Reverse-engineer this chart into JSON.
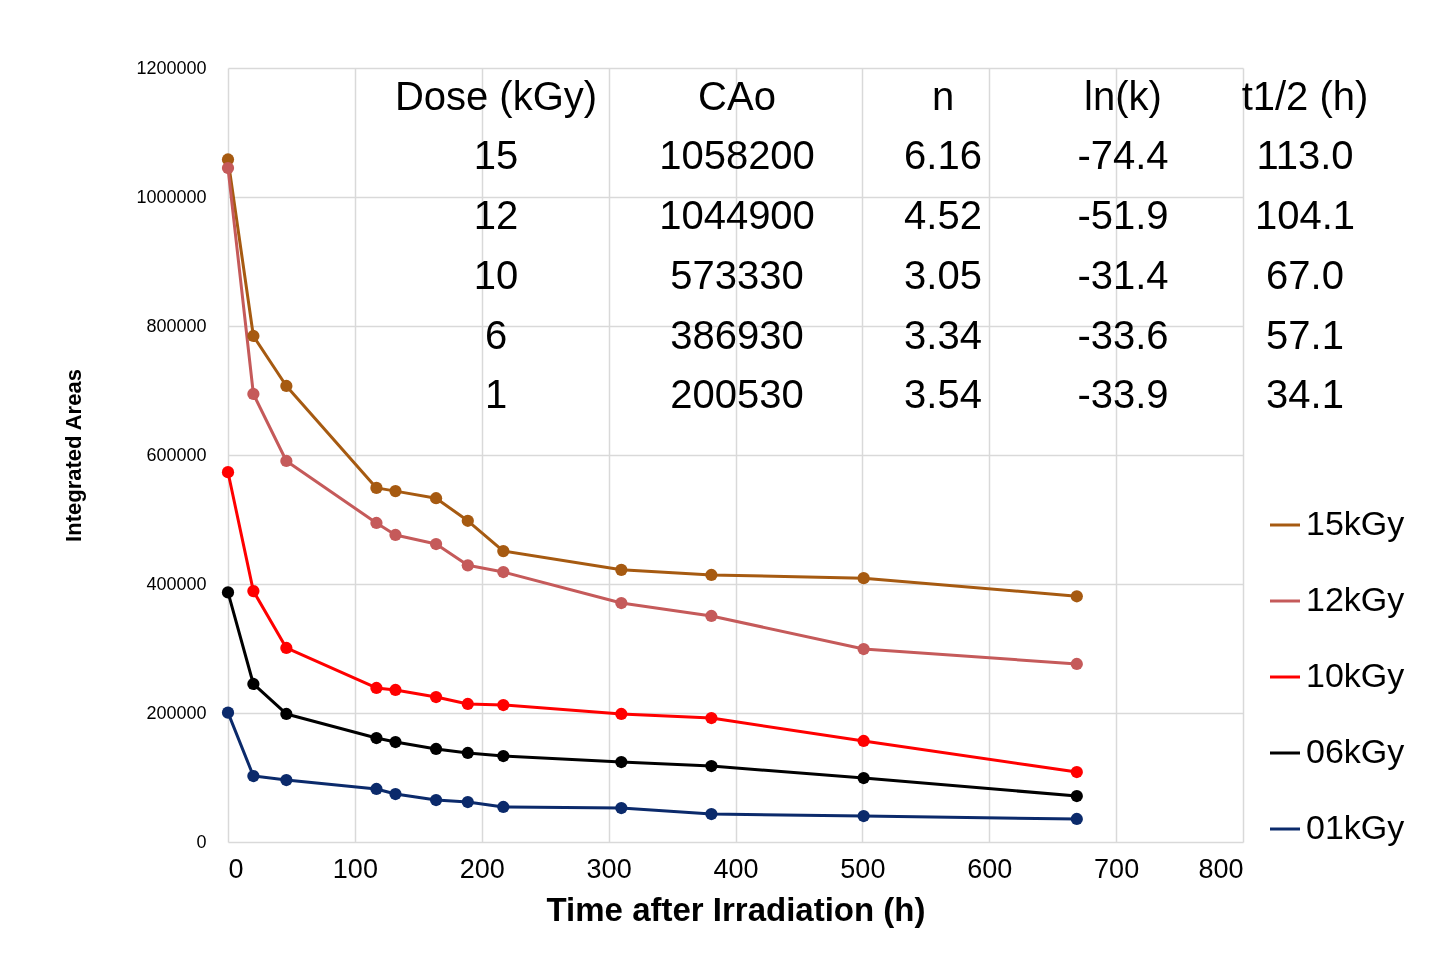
{
  "chart_data": {
    "type": "line",
    "xlabel": "Time after Irradiation (h)",
    "ylabel": "Integrated Areas",
    "xlim": [
      0,
      800
    ],
    "xticks": [
      0,
      100,
      200,
      300,
      400,
      500,
      600,
      700,
      800
    ],
    "ylim": [
      0,
      1200000
    ],
    "yticks": [
      0,
      200000,
      400000,
      600000,
      800000,
      1000000,
      1200000
    ],
    "grid": true,
    "legend": "right",
    "marker": "circle",
    "line_style": "solid",
    "x": [
      0,
      20,
      46,
      117,
      132,
      164,
      189,
      217,
      310,
      381,
      501,
      669
    ],
    "series": [
      {
        "name": "15kGy",
        "color": "#a65a11",
        "values": [
          1058200,
          784500,
          707000,
          549000,
          544000,
          533000,
          498000,
          451000,
          422000,
          414000,
          409000,
          381000
        ]
      },
      {
        "name": "12kGy",
        "color": "#c55a5a",
        "values": [
          1044900,
          694600,
          590700,
          494600,
          476000,
          462000,
          429000,
          418600,
          370500,
          350400,
          299200,
          276000
        ]
      },
      {
        "name": "10kGy",
        "color": "#ff0000",
        "values": [
          573330,
          389000,
          300800,
          238800,
          235700,
          224800,
          214000,
          212400,
          198500,
          192200,
          156600,
          108500
        ]
      },
      {
        "name": "06kGy",
        "color": "#000000",
        "values": [
          386930,
          245000,
          198500,
          161200,
          155000,
          144200,
          138000,
          133300,
          124000,
          117800,
          99200,
          71300
        ]
      },
      {
        "name": "01kGy",
        "color": "#0b2a6b",
        "values": [
          200530,
          102300,
          96100,
          82200,
          74400,
          65100,
          62000,
          54300,
          52700,
          43400,
          40300,
          35700
        ]
      }
    ],
    "annotations": [
      "Dose (kGy)",
      "CAo",
      "n",
      "ln(k)",
      "t1/2 (h)",
      "15",
      "1058200",
      "6.16",
      "-74.4",
      "113.0",
      "12",
      "1044900",
      "4.52",
      "-51.9",
      "104.1",
      "10",
      "573330",
      "3.05",
      "-31.4",
      "67.0",
      "6",
      "386930",
      "3.34",
      "-33.6",
      "57.1",
      "1",
      "200530",
      "3.54",
      "-33.9",
      "34.1"
    ]
  }
}
